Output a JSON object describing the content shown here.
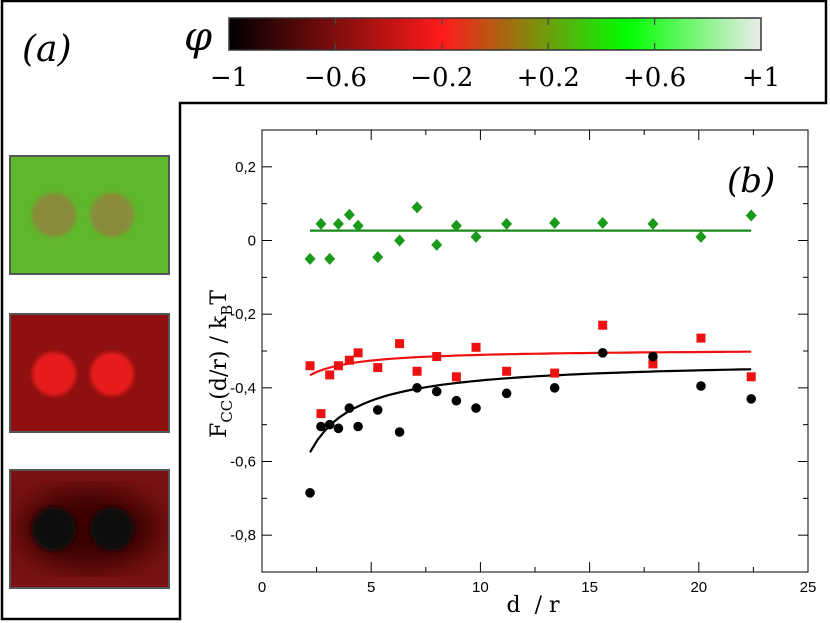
{
  "panel_a": {
    "label": "(a)",
    "colorbar": {
      "symbol": "φ",
      "ticks": [
        "−1",
        "−0.6",
        "−0.2",
        "+0.2",
        "+0.6",
        "+1"
      ],
      "tick_values": [
        -1,
        -0.6,
        -0.2,
        0.2,
        0.6,
        1
      ],
      "stops": [
        {
          "value": -1.0,
          "color": "#000000"
        },
        {
          "value": -0.2,
          "color": "#ff1a1a"
        },
        {
          "value": 0.5,
          "color": "#00ff00"
        },
        {
          "value": 1.0,
          "color": "#ececec"
        }
      ]
    },
    "snapshots": [
      {
        "name": "green-phase",
        "background": "#5fb82a",
        "disk": "#8a8a3a"
      },
      {
        "name": "red-phase",
        "background": "#8e1010",
        "disk": "#e81a1a"
      },
      {
        "name": "dark-phase",
        "background": "#7a1212",
        "disk": "#101010"
      }
    ]
  },
  "panel_b": {
    "label": "(b)"
  },
  "chart_data": {
    "type": "scatter",
    "xlabel": "d  / r",
    "ylabel": "F_CC(d/r) / k_B T",
    "ylabel_parts": {
      "main1": "F",
      "sub1": "CC",
      "main2": "(d/r) / k",
      "sub2": "B",
      "main3": "T"
    },
    "xlim": [
      0,
      25
    ],
    "ylim": [
      -0.9,
      0.3
    ],
    "xticks": [
      0,
      5,
      10,
      15,
      20,
      25
    ],
    "xtick_labels": [
      "0",
      "5",
      "10",
      "15",
      "20",
      "25"
    ],
    "yticks": [
      0.2,
      0,
      -0.2,
      -0.4,
      -0.6,
      -0.8
    ],
    "ytick_labels": [
      "0,2",
      "0",
      "-0,2",
      "-0,4",
      "-0,6",
      "-0,8"
    ],
    "grid": false,
    "series": [
      {
        "marker": "diamond",
        "color": "#1a9a1a",
        "x": [
          2.2,
          2.7,
          3.1,
          3.5,
          4.0,
          4.4,
          5.3,
          6.3,
          7.1,
          8.0,
          8.9,
          9.8,
          11.2,
          13.4,
          15.6,
          17.9,
          20.1,
          22.4
        ],
        "y": [
          -0.05,
          0.045,
          -0.05,
          0.045,
          0.07,
          0.04,
          -0.045,
          0.0,
          0.09,
          -0.012,
          0.04,
          0.01,
          0.045,
          0.048,
          0.048,
          0.045,
          0.01,
          0.068
        ]
      },
      {
        "marker": "square",
        "color": "#ee1111",
        "x": [
          2.2,
          2.7,
          3.1,
          3.5,
          4.0,
          4.4,
          5.3,
          6.3,
          7.1,
          8.0,
          8.9,
          9.8,
          11.2,
          13.4,
          15.6,
          17.9,
          20.1,
          22.4
        ],
        "y": [
          -0.34,
          -0.47,
          -0.365,
          -0.34,
          -0.325,
          -0.305,
          -0.345,
          -0.28,
          -0.355,
          -0.315,
          -0.37,
          -0.29,
          -0.355,
          -0.36,
          -0.23,
          -0.335,
          -0.265,
          -0.37
        ]
      },
      {
        "marker": "circle",
        "color": "#000000",
        "x": [
          2.2,
          2.7,
          3.1,
          3.5,
          4.0,
          4.4,
          5.3,
          6.3,
          7.1,
          8.0,
          8.9,
          9.8,
          11.2,
          13.4,
          15.6,
          17.9,
          20.1,
          22.4
        ],
        "y": [
          -0.685,
          -0.505,
          -0.5,
          -0.51,
          -0.455,
          -0.505,
          -0.46,
          -0.52,
          -0.4,
          -0.41,
          -0.435,
          -0.455,
          -0.415,
          -0.4,
          -0.305,
          -0.315,
          -0.395,
          -0.43
        ]
      }
    ],
    "fits": [
      {
        "color": "#1a8a1a",
        "form": "constant",
        "x": [
          2.2,
          22.4
        ],
        "y": [
          0.027,
          0.027
        ]
      },
      {
        "color": "#ee1111",
        "form": "a+b/x",
        "x_range": [
          2.2,
          22.4
        ],
        "a": -0.295,
        "b": -0.155
      },
      {
        "color": "#000000",
        "form": "a+b/x",
        "x_range": [
          2.2,
          22.4
        ],
        "a": -0.325,
        "b": -0.55
      }
    ]
  }
}
